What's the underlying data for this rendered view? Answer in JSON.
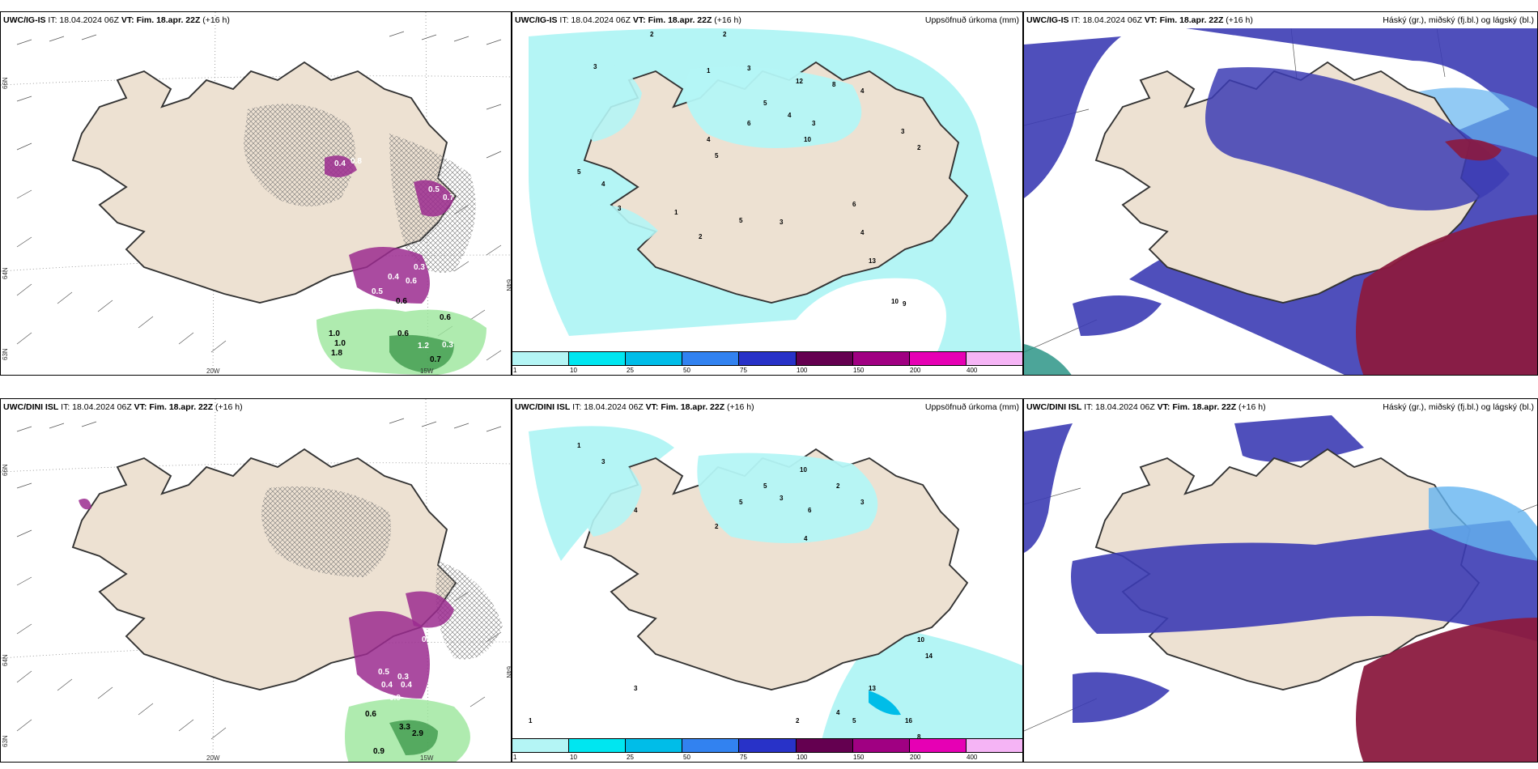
{
  "rows": [
    {
      "model": "UWC/IG-IS",
      "init": "IT: 18.04.2024 06Z",
      "valid": "VT: Fim. 18.apr. 22Z",
      "lead": "(+16 h)",
      "precip_title": "Uppsöfnuð úrkoma (mm)",
      "cloud_title": "Háský (gr.), miðský (fj.bl.) og lágský (bl.)"
    },
    {
      "model": "UWC/DINI ISL",
      "init": "IT: 18.04.2024 06Z",
      "valid": "VT: Fim. 18.apr. 22Z",
      "lead": "(+16 h)",
      "precip_title": "Uppsöfnuð úrkoma (mm)",
      "cloud_title": "Háský (gr.), miðský (fj.bl.) og lágský (bl.)"
    }
  ],
  "axes": {
    "lat66": "66N",
    "lat64": "64N",
    "lat63": "63N",
    "lon20": "20W",
    "lon15": "15W"
  },
  "colorbar": {
    "labels": [
      "1",
      "10",
      "25",
      "50",
      "75",
      "100",
      "150",
      "200",
      "400"
    ],
    "colors": [
      "#b4f5f5",
      "#00e6f0",
      "#00bde8",
      "#3282f0",
      "#2832c8",
      "#640050",
      "#a00082",
      "#e600b4",
      "#f5b4f5"
    ]
  },
  "colors": {
    "land": "#ede1d2",
    "sea": "#ffffff",
    "snow_purple": "#9b2b8f",
    "rain_green": "#9be69b",
    "precip_light": "#b4f5f5",
    "cloud_high": "#8b1a3f",
    "cloud_mid": "#3c3cb4",
    "cloud_low": "#64b4f0"
  },
  "panel1_values": {
    "top": [
      "0.4",
      "0.8",
      "0.5",
      "0.7",
      "0.3",
      "0.4",
      "0.6",
      "0.5",
      "1.0",
      "1.0",
      "1.8",
      "0.6",
      "0.6",
      "1.2",
      "0.3",
      "0.7",
      "0.6"
    ],
    "bottom": [
      "0.3",
      "0.5",
      "0.3",
      "0.4",
      "0.4",
      "0.9",
      "0.6",
      "3.3",
      "2.9",
      "0.9",
      "0.6"
    ]
  },
  "panel2_values": {
    "top": [
      "2",
      "2",
      "3",
      "1",
      "3",
      "12",
      "8",
      "4",
      "5",
      "4",
      "3",
      "6",
      "10",
      "4",
      "5",
      "3",
      "2",
      "5",
      "4",
      "3",
      "1",
      "5",
      "3",
      "2",
      "6",
      "4",
      "13",
      "9",
      "10"
    ],
    "bottom": [
      "10",
      "5",
      "3",
      "2",
      "5",
      "6",
      "3",
      "4",
      "2",
      "1",
      "3",
      "4",
      "10",
      "14",
      "13",
      "16",
      "8",
      "4",
      "5",
      "2",
      "1",
      "3"
    ]
  }
}
